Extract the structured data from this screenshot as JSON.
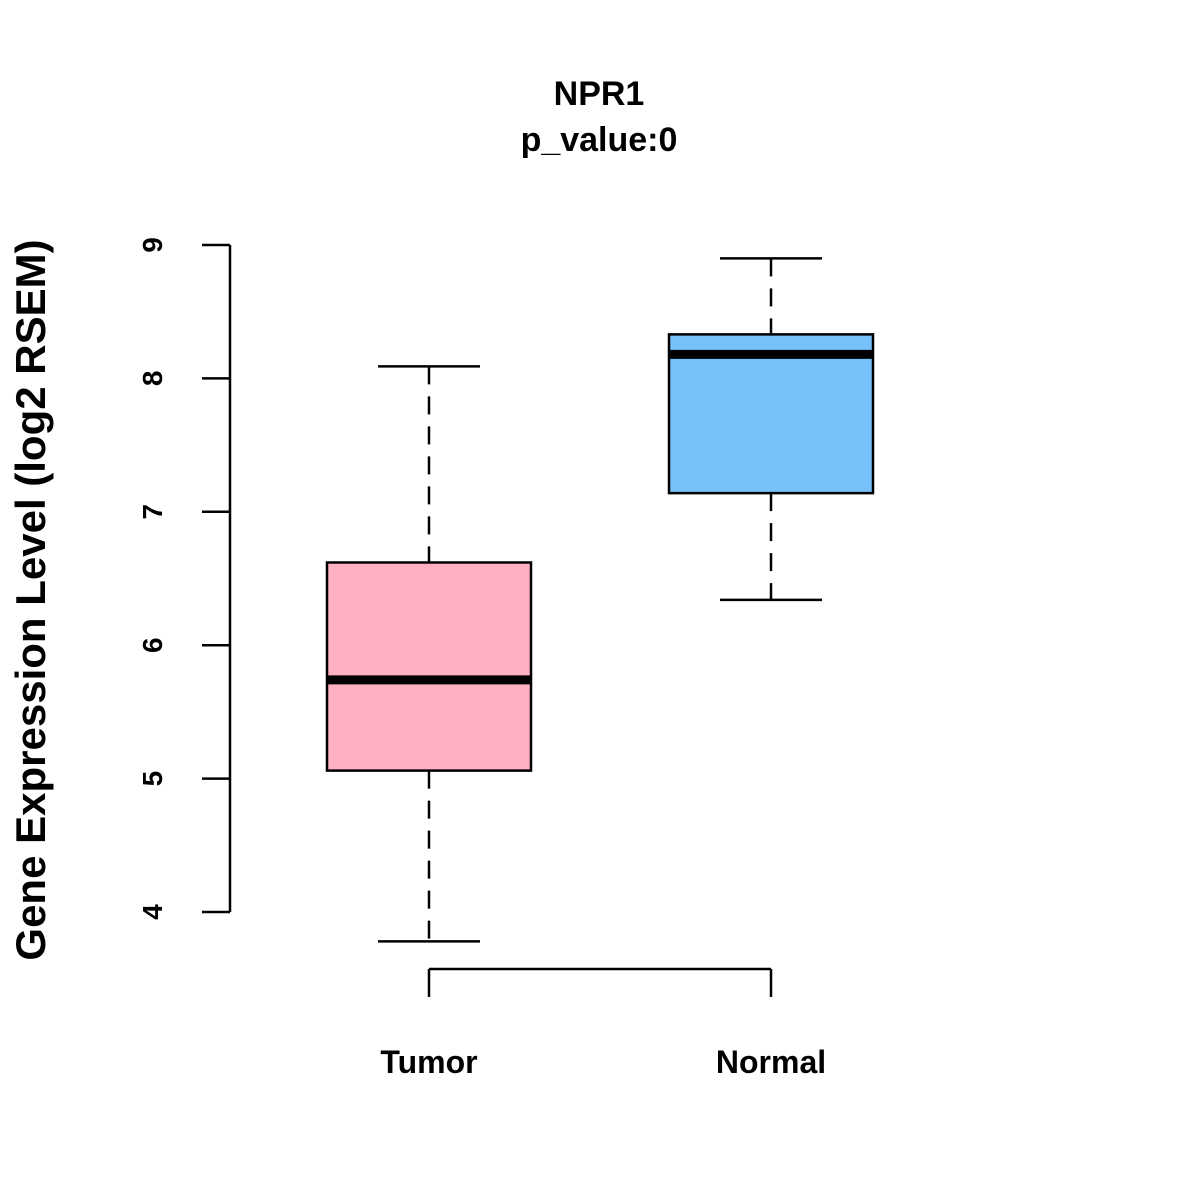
{
  "chart_data": {
    "type": "boxplot",
    "title": "NPR1",
    "subtitle": "p_value:0",
    "xlabel": "",
    "ylabel": "Gene Expression Level (log2 RSEM)",
    "ylim": [
      4,
      9
    ],
    "yticks": [
      4,
      5,
      6,
      7,
      8,
      9
    ],
    "grid": false,
    "categories": [
      "Tumor",
      "Normal"
    ],
    "series": [
      {
        "name": "Tumor",
        "color": "#FFB1C3",
        "whisker_low": 3.78,
        "q1": 5.06,
        "median": 5.74,
        "q3": 6.62,
        "whisker_high": 8.09
      },
      {
        "name": "Normal",
        "color": "#76C1F9",
        "whisker_low": 6.34,
        "q1": 7.14,
        "median": 8.18,
        "q3": 8.33,
        "whisker_high": 8.9
      }
    ]
  }
}
